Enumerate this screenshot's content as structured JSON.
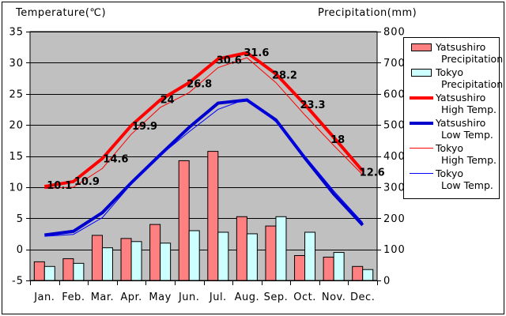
{
  "titles": {
    "left": "Temperature(℃)",
    "right": "Precipitation(mm)"
  },
  "legend": {
    "items": [
      {
        "id": "yatsushiro-precipitation",
        "swatch": "bar",
        "color": "#FF8080",
        "name": "Yatsushiro",
        "detail": "Precipitation"
      },
      {
        "id": "tokyo-precipitation",
        "swatch": "bar",
        "color": "#CCFFFF",
        "name": "Tokyo",
        "detail": "Precipitation"
      },
      {
        "id": "yatsushiro-high-temp",
        "swatch": "thick-line",
        "color": "#FF0000",
        "name": "Yatsushiro",
        "detail": "High Temp."
      },
      {
        "id": "yatsushiro-low-temp",
        "swatch": "thick-line",
        "color": "#0000CC",
        "name": "Yatsushiro",
        "detail": "Low Temp."
      },
      {
        "id": "tokyo-high-temp",
        "swatch": "thin-line",
        "color": "#FF0000",
        "name": "Tokyo",
        "detail": "High Temp."
      },
      {
        "id": "tokyo-low-temp",
        "swatch": "thin-line",
        "color": "#0000FF",
        "name": "Tokyo",
        "detail": "Low Temp."
      }
    ]
  },
  "chart_data": {
    "type": "combo-bar-line",
    "categories": [
      "Jan.",
      "Feb.",
      "Mar.",
      "Apr.",
      "May",
      "Jun.",
      "Jul.",
      "Aug.",
      "Sep.",
      "Oct.",
      "Nov.",
      "Dec."
    ],
    "temp_axis": {
      "title": "Temperature(℃)",
      "ticks": [
        35,
        30,
        25,
        20,
        15,
        10,
        5,
        0,
        -5
      ],
      "range": [
        -5,
        35
      ],
      "side": "left"
    },
    "precip_axis": {
      "title": "Precipitation(mm)",
      "ticks": [
        800,
        700,
        600,
        500,
        400,
        300,
        200,
        100,
        0
      ],
      "range": [
        0,
        800
      ],
      "side": "right"
    },
    "grid": true,
    "plot_bg": "#C0C0C0",
    "grid_color": "#000000",
    "series": [
      {
        "name": "Yatsushiro Precipitation",
        "id": "yatsushiro-precipitation",
        "type": "bar",
        "axis": "precip",
        "color": "#FF8080",
        "values": [
          60,
          70,
          145,
          135,
          180,
          385,
          415,
          205,
          175,
          80,
          75,
          45
        ]
      },
      {
        "name": "Tokyo Precipitation",
        "id": "tokyo-precipitation",
        "type": "bar",
        "axis": "precip",
        "color": "#CCFFFF",
        "values": [
          45,
          55,
          105,
          125,
          120,
          160,
          155,
          150,
          205,
          155,
          90,
          35
        ]
      },
      {
        "name": "Yatsushiro High Temp.",
        "id": "yatsushiro-high-temp",
        "type": "line",
        "axis": "temp",
        "color": "#FF0000",
        "width": 4,
        "values": [
          10.1,
          10.9,
          14.6,
          19.9,
          24,
          26.8,
          30.6,
          31.6,
          28.2,
          23.3,
          18,
          12.6
        ]
      },
      {
        "name": "Yatsushiro Low Temp.",
        "id": "yatsushiro-low-temp",
        "type": "line",
        "axis": "temp",
        "color": "#0000CC",
        "width": 4,
        "values": [
          2.3,
          2.9,
          5.9,
          10.7,
          15.2,
          19.6,
          23.5,
          24,
          20.8,
          14.7,
          8.9,
          3.9
        ]
      },
      {
        "name": "Tokyo High Temp.",
        "id": "tokyo-high-temp",
        "type": "line",
        "axis": "temp",
        "color": "#FF0000",
        "width": 1,
        "values": [
          9.8,
          10,
          13,
          18.5,
          22.8,
          25.2,
          29.2,
          30.8,
          26.8,
          21.6,
          16.7,
          12
        ]
      },
      {
        "name": "Tokyo Low Temp.",
        "id": "tokyo-low-temp",
        "type": "line",
        "axis": "temp",
        "color": "#0000FF",
        "width": 1,
        "values": [
          2.1,
          2.4,
          5.1,
          10.5,
          15.1,
          18.9,
          22.5,
          24.2,
          20.5,
          15,
          9.4,
          4.3
        ]
      }
    ],
    "point_labels": {
      "series": "Yatsushiro High Temp.",
      "values": [
        "10.1",
        "10.9",
        "14.6",
        "19.9",
        "24",
        "26.8",
        "30.6",
        "31.6",
        "28.2",
        "23.3",
        "18",
        "12.6"
      ]
    }
  }
}
